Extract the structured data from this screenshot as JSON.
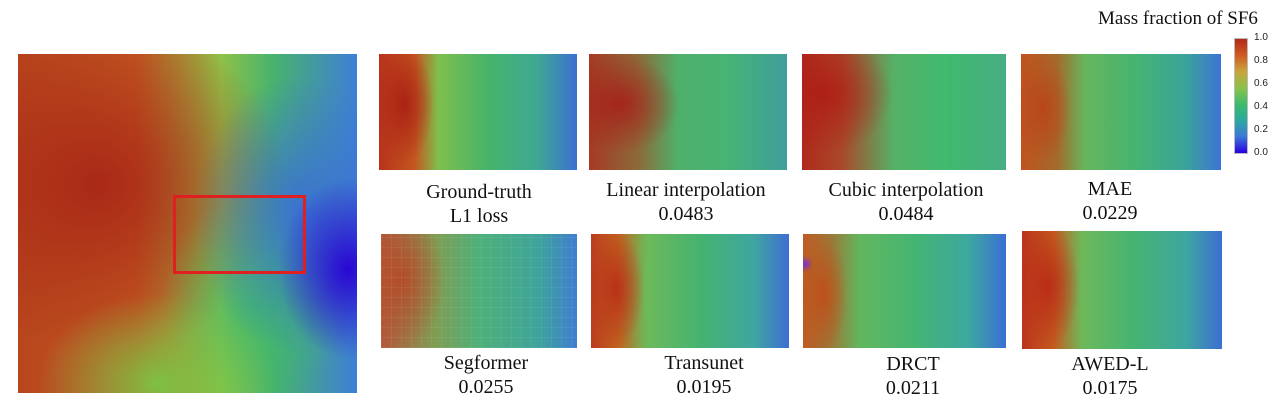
{
  "colorbar": {
    "title": "Mass fraction of SF6",
    "ticks": [
      "1.0",
      "0.8",
      "0.6",
      "0.4",
      "0.2",
      "0.0"
    ],
    "colors": [
      "#b22a1a",
      "#cf5a22",
      "#c9a43a",
      "#8bc34a",
      "#3dbb6a",
      "#2aa9a0",
      "#3a78d8",
      "#2a00e0"
    ]
  },
  "highlight_box_color": "#e02020",
  "panels": [
    {
      "id": "ground-truth",
      "caption": "Ground-truth",
      "metric_label": "L1 loss"
    },
    {
      "id": "linear-interpolation",
      "caption": "Linear interpolation",
      "value": "0.0483"
    },
    {
      "id": "cubic-interpolation",
      "caption": "Cubic interpolation",
      "value": "0.0484"
    },
    {
      "id": "mae",
      "caption": "MAE",
      "value": "0.0229"
    },
    {
      "id": "segformer",
      "caption": "Segformer",
      "value": "0.0255"
    },
    {
      "id": "transunet",
      "caption": "Transunet",
      "value": "0.0195"
    },
    {
      "id": "drct",
      "caption": "DRCT",
      "value": "0.0211"
    },
    {
      "id": "awed-l",
      "caption": "AWED-L",
      "value": "0.0175"
    }
  ]
}
